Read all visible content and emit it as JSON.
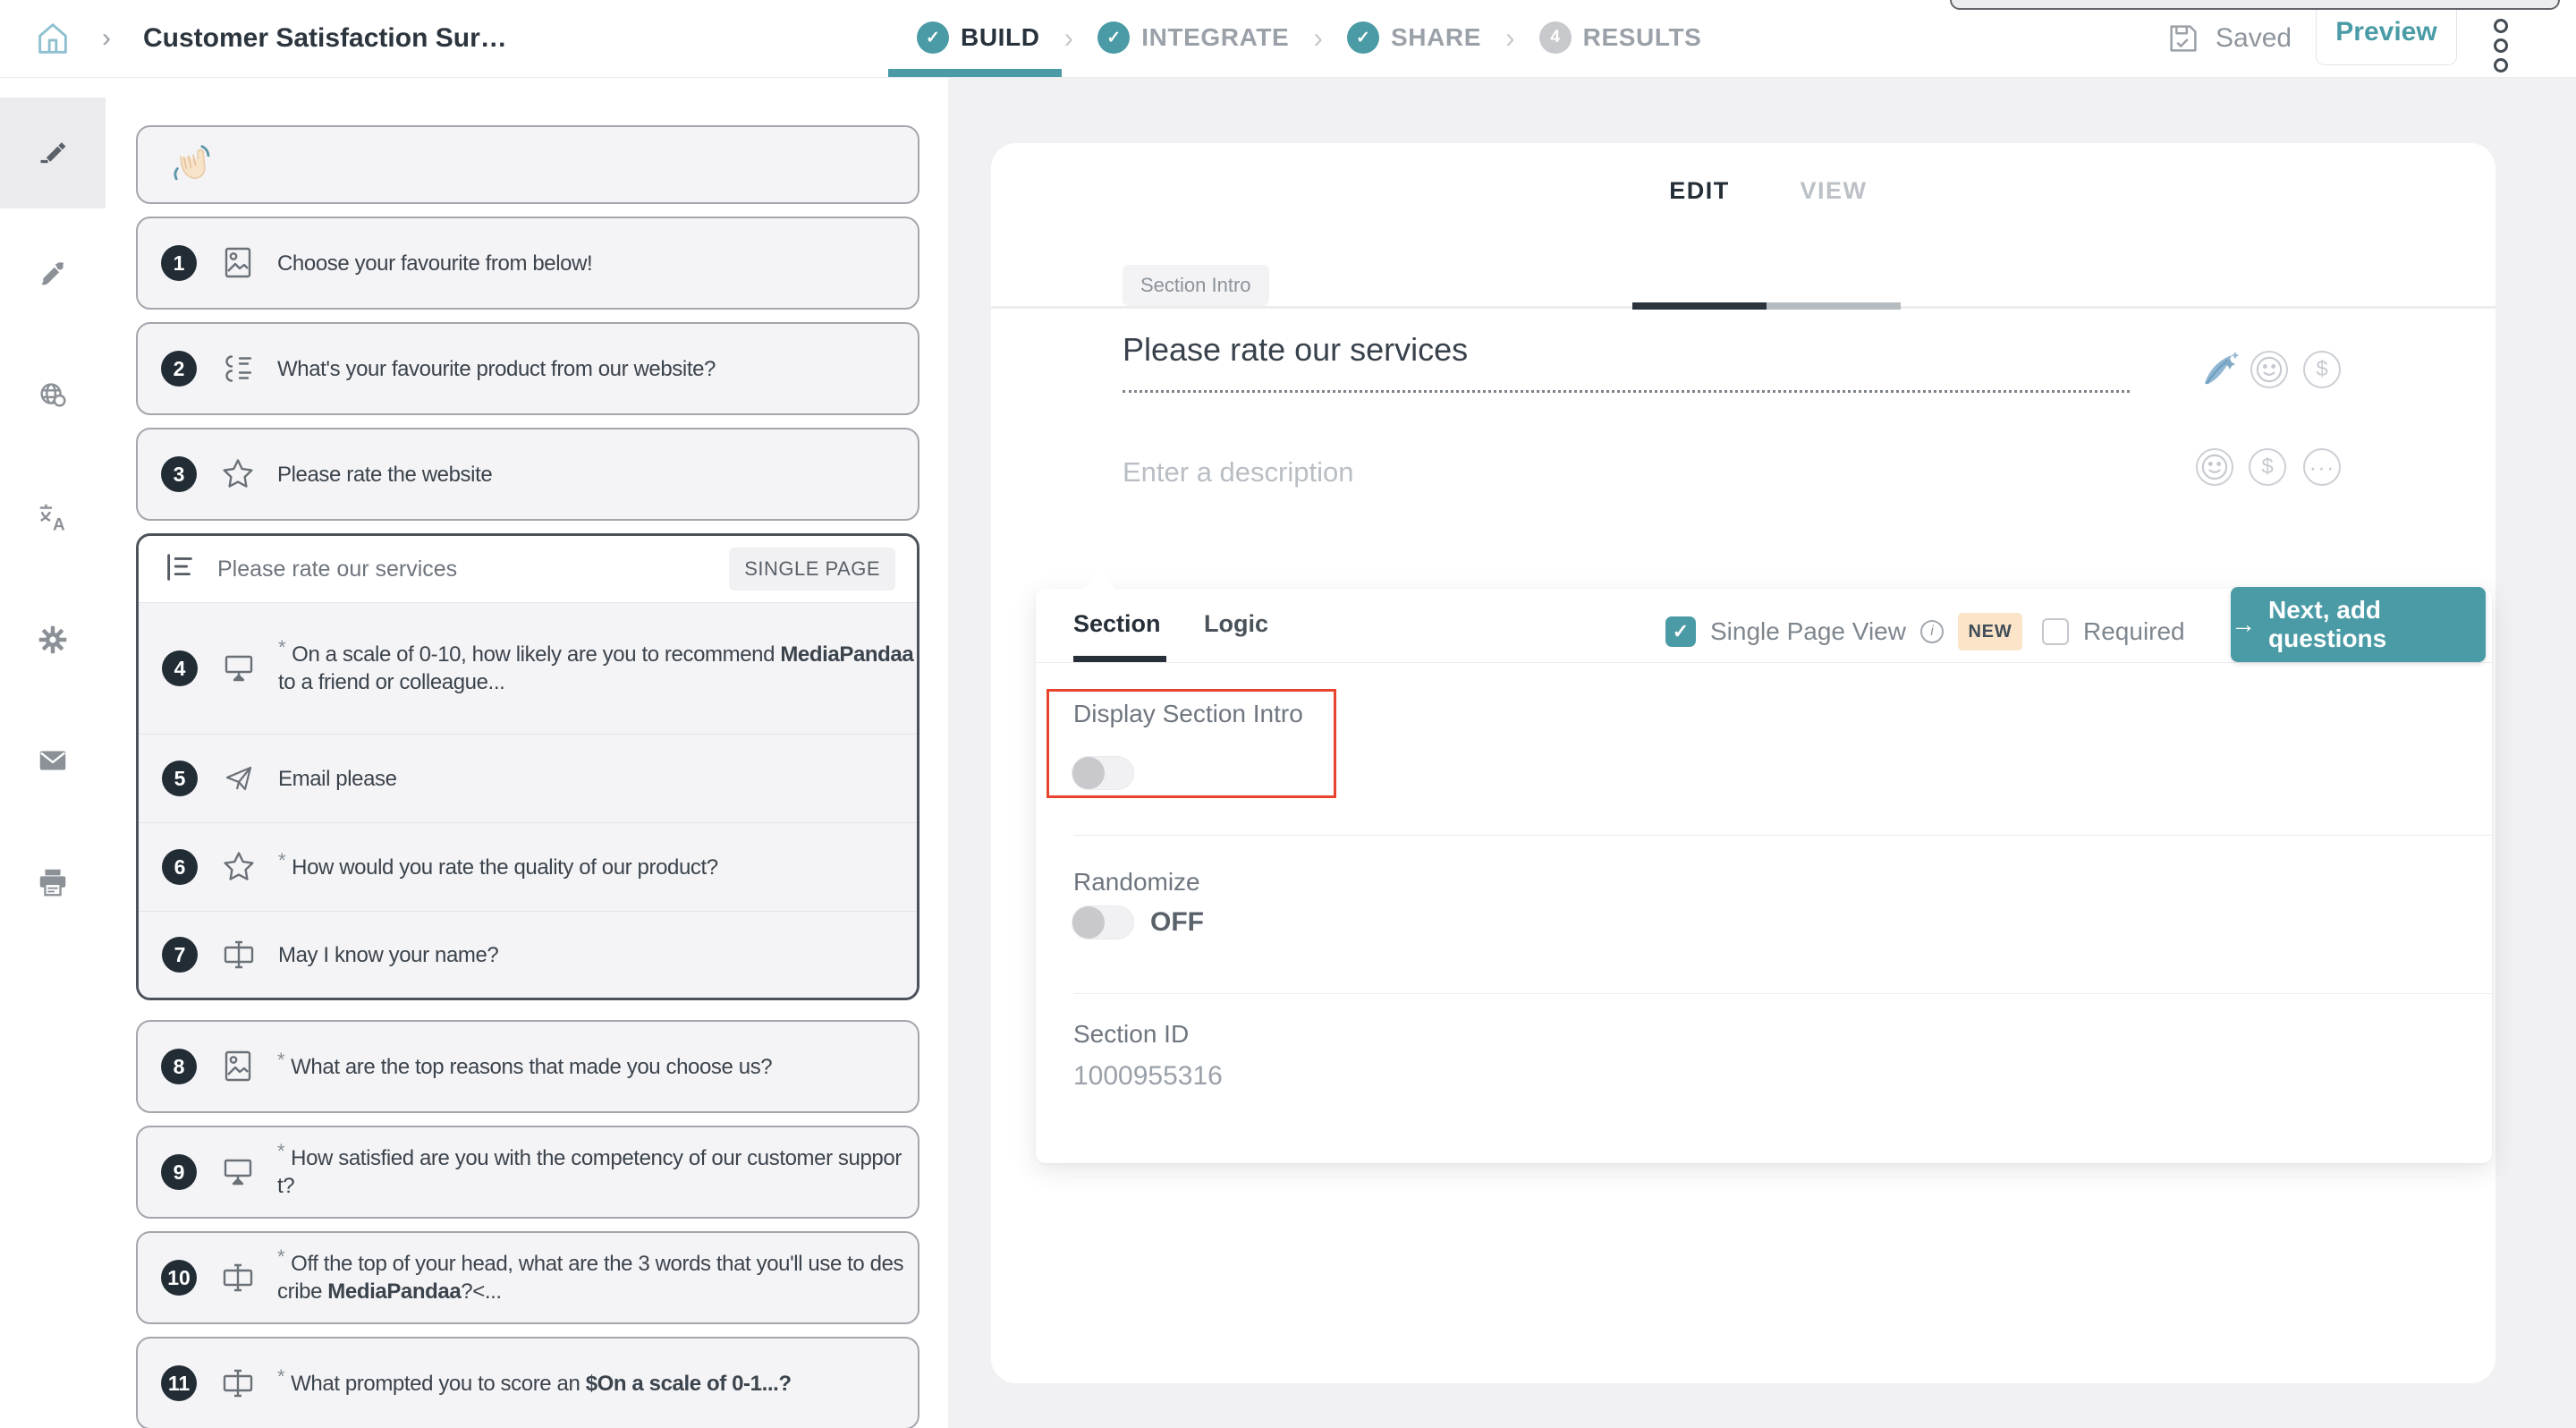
{
  "colors": {
    "teal": "#4a9ba6",
    "annotation_red": "#e8432c",
    "new_badge_bg": "#fbe4c7"
  },
  "header": {
    "title": "Customer Satisfaction Sur…",
    "steps": [
      {
        "label": "BUILD",
        "status": "done",
        "active": true
      },
      {
        "label": "INTEGRATE",
        "status": "done",
        "active": false
      },
      {
        "label": "SHARE",
        "status": "done",
        "active": false
      },
      {
        "label": "RESULTS",
        "status": "4",
        "active": false
      }
    ],
    "saved_label": "Saved",
    "preview_label": "Preview"
  },
  "sidebar": {
    "items": [
      {
        "name": "edit",
        "icon": "pencil-icon",
        "active": true
      },
      {
        "name": "theme",
        "icon": "paintbrush-icon",
        "active": false
      },
      {
        "name": "language",
        "icon": "globe-icon",
        "active": false
      },
      {
        "name": "translate",
        "icon": "translate-icon",
        "active": false
      },
      {
        "name": "settings",
        "icon": "gear-icon",
        "active": false
      },
      {
        "name": "email",
        "icon": "envelope-icon",
        "active": false
      },
      {
        "name": "print",
        "icon": "printer-icon",
        "active": false
      }
    ]
  },
  "questions": {
    "cards": [
      {
        "type": "welcome",
        "icon": "waving-hand-icon"
      },
      {
        "type": "q",
        "num": "1",
        "icon": "image",
        "required": false,
        "segs": [
          {
            "t": "Choose your favourite from below!"
          }
        ]
      },
      {
        "type": "q",
        "num": "2",
        "icon": "choice",
        "required": false,
        "segs": [
          {
            "t": "What's your favourite product from our website?"
          }
        ]
      },
      {
        "type": "q",
        "num": "3",
        "icon": "star",
        "required": false,
        "segs": [
          {
            "t": "Please rate the website"
          }
        ]
      },
      {
        "type": "group",
        "title": "Please rate our services",
        "badge": "SINGLE PAGE",
        "items": [
          {
            "num": "4",
            "icon": "nps",
            "required": true,
            "segs": [
              {
                "t": "On a scale of 0-10, how likely are you to recommend "
              },
              {
                "t": "MediaPandaa",
                "b": true
              },
              {
                "br": true
              },
              {
                "t": "to a friend or colleague..."
              }
            ]
          },
          {
            "num": "5",
            "icon": "plane",
            "required": false,
            "segs": [
              {
                "t": "Email please"
              }
            ]
          },
          {
            "num": "6",
            "icon": "star",
            "required": true,
            "segs": [
              {
                "t": "How would you rate the quality of our product?"
              }
            ]
          },
          {
            "num": "7",
            "icon": "input",
            "required": false,
            "segs": [
              {
                "t": "May I know your name?"
              }
            ]
          }
        ]
      },
      {
        "type": "q",
        "num": "8",
        "icon": "image",
        "required": true,
        "segs": [
          {
            "t": "What are the top reasons that made you choose us?"
          }
        ]
      },
      {
        "type": "q",
        "num": "9",
        "icon": "nps",
        "required": true,
        "segs": [
          {
            "t": "How satisfied are you with the competency of our customer suppor"
          },
          {
            "br": true
          },
          {
            "t": "t?"
          }
        ]
      },
      {
        "type": "q",
        "num": "10",
        "icon": "input",
        "required": true,
        "segs": [
          {
            "t": "Off the top of your head, what are the 3 words that you'll use to des"
          },
          {
            "br": true
          },
          {
            "t": "cribe "
          },
          {
            "t": "MediaPandaa",
            "b": true
          },
          {
            "t": "?<..."
          }
        ]
      },
      {
        "type": "q",
        "num": "11",
        "icon": "input",
        "required": true,
        "segs": [
          {
            "t": "What prompted you to score an "
          },
          {
            "t": "$On a scale of 0-1...?",
            "b": true
          }
        ]
      }
    ]
  },
  "main": {
    "tabs": {
      "edit": "EDIT",
      "view": "VIEW"
    },
    "section_chip": "Section Intro",
    "title": "Please rate our services",
    "description_placeholder": "Enter a description",
    "panel": {
      "tabs": [
        {
          "label": "Section"
        },
        {
          "label": "Logic"
        }
      ],
      "single_page_label": "Single Page View",
      "new_badge": "NEW",
      "required_label": "Required",
      "next_button": "Next, add questions",
      "display_section_intro_label": "Display Section Intro",
      "display_section_intro_state": "off",
      "randomize_label": "Randomize",
      "randomize_state": "OFF",
      "section_id_label": "Section ID",
      "section_id_value": "1000955316"
    }
  }
}
